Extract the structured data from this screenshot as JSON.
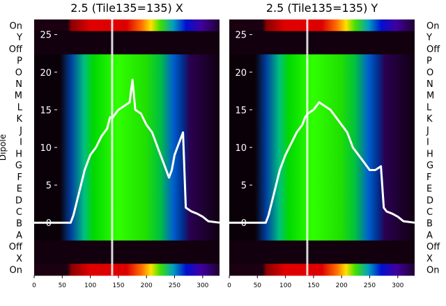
{
  "chart_data": [
    {
      "type": "heatmap",
      "title": "2.5 (Tile135=135) X",
      "ylabel": "Dipole",
      "row_labels": [
        "On",
        "Y",
        "Off",
        "P",
        "O",
        "N",
        "M",
        "L",
        "K",
        "J",
        "I",
        "H",
        "G",
        "F",
        "E",
        "D",
        "C",
        "B",
        "A",
        "Off",
        "X",
        "On"
      ],
      "x_ticks": [
        0,
        50,
        100,
        150,
        200,
        250,
        300
      ],
      "xlim": [
        0,
        330
      ],
      "overlay_y_ticks": [
        0,
        5,
        10,
        15,
        20,
        25
      ],
      "overlay_ylim": [
        -7,
        27
      ],
      "overlay_curve": {
        "x": [
          0,
          65,
          70,
          80,
          90,
          100,
          110,
          120,
          130,
          135,
          140,
          150,
          160,
          170,
          175,
          180,
          190,
          200,
          210,
          220,
          230,
          240,
          245,
          250,
          255,
          260,
          265,
          270,
          280,
          290,
          300,
          310,
          330
        ],
        "y": [
          0,
          0,
          1,
          4,
          7,
          9,
          10,
          11.5,
          12.5,
          14,
          14,
          15,
          15.5,
          16,
          19,
          15,
          14.5,
          13,
          12,
          10,
          8,
          6,
          7,
          9,
          10,
          11,
          12,
          2,
          1.5,
          1.2,
          0.8,
          0.2,
          0
        ]
      }
    },
    {
      "type": "heatmap",
      "title": "2.5 (Tile135=135) Y",
      "row_labels": [
        "On",
        "Y",
        "Off",
        "P",
        "O",
        "N",
        "M",
        "L",
        "K",
        "J",
        "I",
        "H",
        "G",
        "F",
        "E",
        "D",
        "C",
        "B",
        "A",
        "Off",
        "X",
        "On"
      ],
      "x_ticks": [
        0,
        50,
        100,
        150,
        200,
        250,
        300
      ],
      "xlim": [
        0,
        330
      ],
      "overlay_y_ticks": [
        0,
        5,
        10,
        15,
        20,
        25
      ],
      "overlay_ylim": [
        -7,
        27
      ],
      "overlay_curve": {
        "x": [
          0,
          65,
          70,
          80,
          90,
          100,
          110,
          120,
          130,
          135,
          140,
          150,
          160,
          170,
          180,
          190,
          200,
          210,
          220,
          230,
          240,
          250,
          260,
          270,
          275,
          280,
          290,
          300,
          310,
          330
        ],
        "y": [
          0,
          0,
          1,
          4,
          7,
          9,
          10.5,
          12,
          13,
          14,
          14.5,
          15,
          16,
          15.5,
          15,
          14,
          13,
          12,
          10,
          9,
          8,
          7,
          7,
          7.5,
          2,
          1.5,
          1.2,
          0.8,
          0.2,
          0
        ]
      }
    }
  ]
}
